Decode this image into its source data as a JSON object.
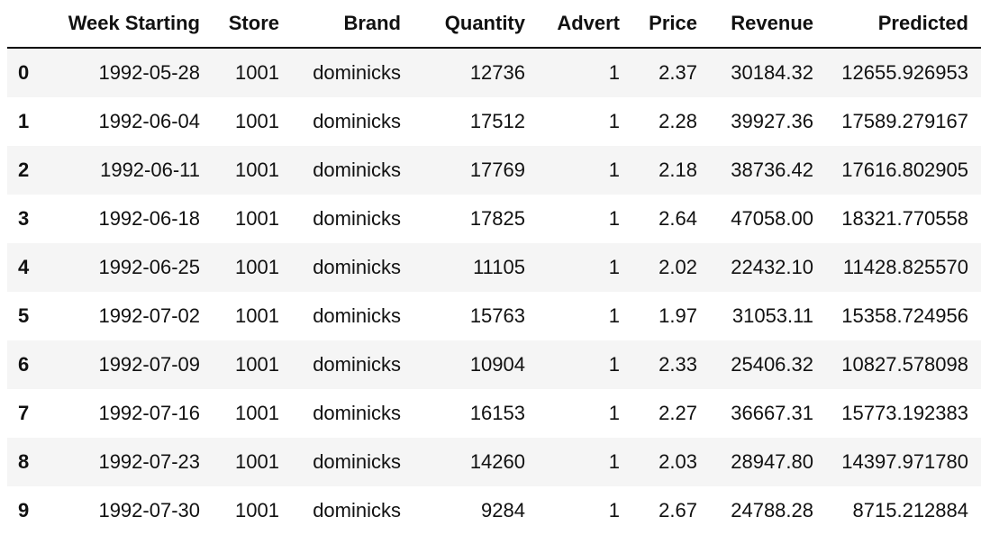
{
  "table": {
    "columns": [
      "",
      "Week Starting",
      "Store",
      "Brand",
      "Quantity",
      "Advert",
      "Price",
      "Revenue",
      "Predicted"
    ],
    "rows": [
      {
        "index": "0",
        "week": "1992-05-28",
        "store": "1001",
        "brand": "dominicks",
        "quantity": "12736",
        "advert": "1",
        "price": "2.37",
        "revenue": "30184.32",
        "predicted": "12655.926953"
      },
      {
        "index": "1",
        "week": "1992-06-04",
        "store": "1001",
        "brand": "dominicks",
        "quantity": "17512",
        "advert": "1",
        "price": "2.28",
        "revenue": "39927.36",
        "predicted": "17589.279167"
      },
      {
        "index": "2",
        "week": "1992-06-11",
        "store": "1001",
        "brand": "dominicks",
        "quantity": "17769",
        "advert": "1",
        "price": "2.18",
        "revenue": "38736.42",
        "predicted": "17616.802905"
      },
      {
        "index": "3",
        "week": "1992-06-18",
        "store": "1001",
        "brand": "dominicks",
        "quantity": "17825",
        "advert": "1",
        "price": "2.64",
        "revenue": "47058.00",
        "predicted": "18321.770558"
      },
      {
        "index": "4",
        "week": "1992-06-25",
        "store": "1001",
        "brand": "dominicks",
        "quantity": "11105",
        "advert": "1",
        "price": "2.02",
        "revenue": "22432.10",
        "predicted": "11428.825570"
      },
      {
        "index": "5",
        "week": "1992-07-02",
        "store": "1001",
        "brand": "dominicks",
        "quantity": "15763",
        "advert": "1",
        "price": "1.97",
        "revenue": "31053.11",
        "predicted": "15358.724956"
      },
      {
        "index": "6",
        "week": "1992-07-09",
        "store": "1001",
        "brand": "dominicks",
        "quantity": "10904",
        "advert": "1",
        "price": "2.33",
        "revenue": "25406.32",
        "predicted": "10827.578098"
      },
      {
        "index": "7",
        "week": "1992-07-16",
        "store": "1001",
        "brand": "dominicks",
        "quantity": "16153",
        "advert": "1",
        "price": "2.27",
        "revenue": "36667.31",
        "predicted": "15773.192383"
      },
      {
        "index": "8",
        "week": "1992-07-23",
        "store": "1001",
        "brand": "dominicks",
        "quantity": "14260",
        "advert": "1",
        "price": "2.03",
        "revenue": "28947.80",
        "predicted": "14397.971780"
      },
      {
        "index": "9",
        "week": "1992-07-30",
        "store": "1001",
        "brand": "dominicks",
        "quantity": "9284",
        "advert": "1",
        "price": "2.67",
        "revenue": "24788.28",
        "predicted": "8715.212884"
      }
    ]
  }
}
